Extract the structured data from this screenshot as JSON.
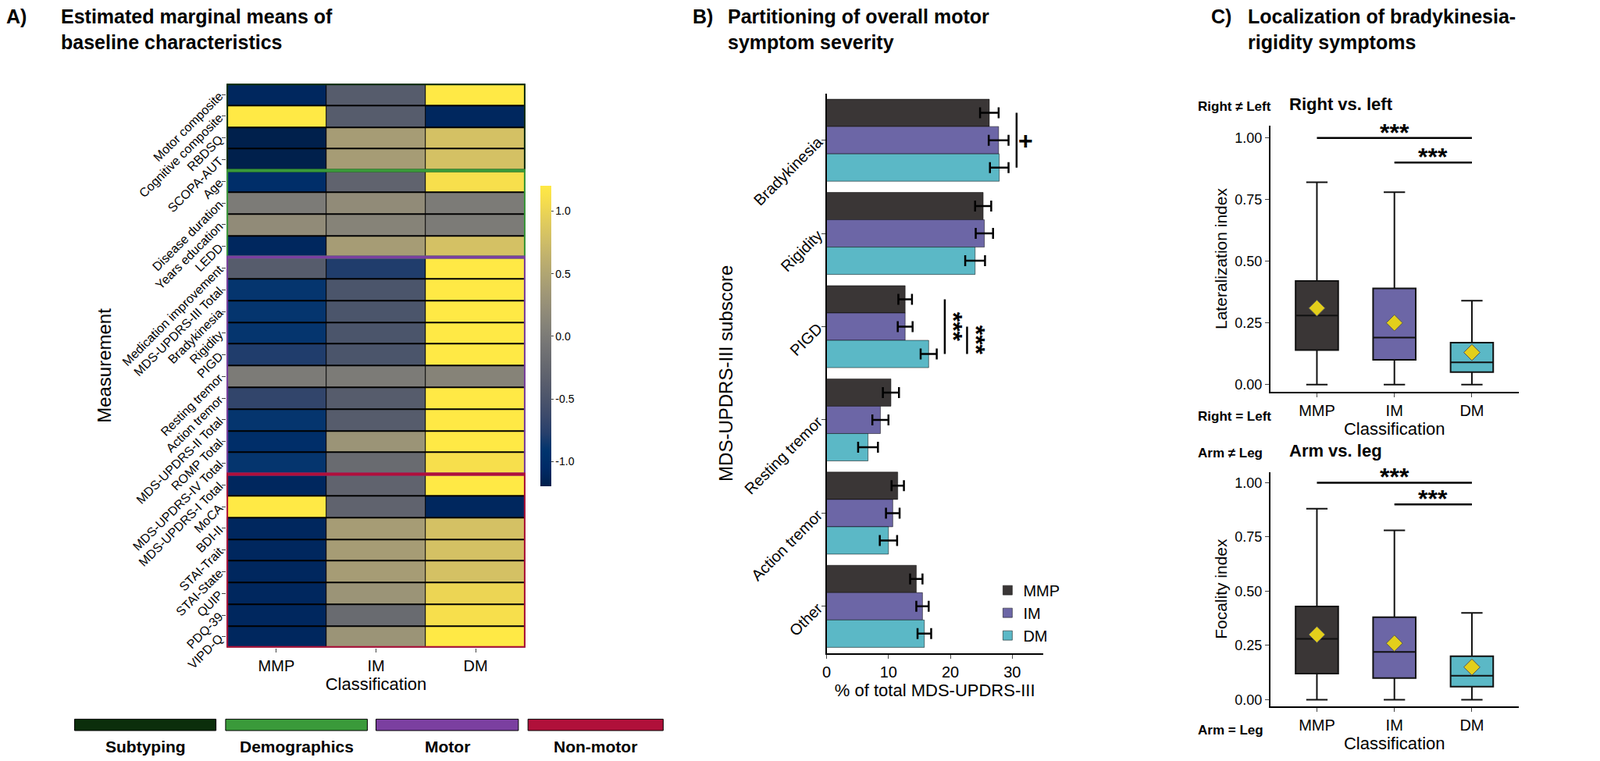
{
  "chart_data": [
    {
      "type": "heatmap",
      "panel": "A)",
      "title": "Estimated marginal means of\nbaseline characteristics",
      "x_label": "Classification",
      "y_label": "Measurement",
      "x": [
        "MMP",
        "IM",
        "DM"
      ],
      "categories": [
        "Motor composite",
        "Cognitive composite",
        "RBDSQ",
        "SCOPA-AUT",
        "Age",
        "Disease duration",
        "Years education",
        "LEDD",
        "Medication improvement",
        "MDS-UPDRS-III Total",
        "Bradykinesia",
        "Rigidity",
        "PIGD",
        "Resting tremor",
        "Action tremor",
        "MDS-UPDRS-II Total",
        "ROMP Total",
        "MDS-UPDRS-IV Total",
        "MDS-UPDRS-I Total",
        "MoCA",
        "BDI-II",
        "STAI-Trait",
        "STAI-State",
        "QUIP",
        "PDQ-39",
        "VIPD-Q"
      ],
      "cells": [
        [
          -1.1,
          -0.4,
          1.2
        ],
        [
          1.2,
          -0.4,
          -1.1
        ],
        [
          -1.2,
          0.4,
          0.8
        ],
        [
          -1.2,
          0.4,
          0.8
        ],
        [
          -1.0,
          -0.3,
          1.1
        ],
        [
          0.0,
          0.2,
          0.0
        ],
        [
          0.2,
          0.1,
          0.0
        ],
        [
          -1.1,
          0.4,
          0.8
        ],
        [
          -0.4,
          -0.8,
          1.2
        ],
        [
          -0.9,
          -0.5,
          1.2
        ],
        [
          -0.9,
          -0.5,
          1.2
        ],
        [
          -0.9,
          -0.5,
          1.2
        ],
        [
          -0.8,
          -0.5,
          1.2
        ],
        [
          0.0,
          0.0,
          0.1
        ],
        [
          -0.7,
          -0.4,
          1.2
        ],
        [
          -0.9,
          -0.4,
          1.2
        ],
        [
          -1.0,
          0.3,
          1.2
        ],
        [
          -0.9,
          -0.2,
          1.1
        ],
        [
          -1.1,
          -0.3,
          1.2
        ],
        [
          1.2,
          -0.3,
          -1.1
        ],
        [
          -1.1,
          0.4,
          0.8
        ],
        [
          -1.1,
          0.4,
          0.8
        ],
        [
          -1.1,
          0.4,
          0.8
        ],
        [
          -1.1,
          0.3,
          1.0
        ],
        [
          -1.1,
          -0.2,
          1.1
        ],
        [
          -1.1,
          0.3,
          1.2
        ]
      ],
      "colorbar": {
        "range": [
          -1.2,
          1.2
        ],
        "ticks": [
          {
            "value": -1,
            "label": "-1.0"
          },
          -0.5,
          {
            "value": 0,
            "label": "0.0"
          },
          0.5,
          {
            "value": 1,
            "label": "1.0"
          }
        ]
      },
      "groups": [
        {
          "name": "Subtyping",
          "color": "#0b2e0b",
          "count": 4
        },
        {
          "name": "Demographics",
          "color": "#3a9a3a",
          "count": 4
        },
        {
          "name": "Motor",
          "color": "#7b3fa0",
          "count": 10
        },
        {
          "name": "Non-motor",
          "color": "#b0103a",
          "count": 8
        }
      ]
    },
    {
      "type": "bar",
      "orientation": "horizontal",
      "panel": "B)",
      "title": "Partitioning of overall motor\nsymptom severity",
      "x_label": "% of total MDS-UPDRS-III",
      "y_label": "MDS-UPDRS-III subscore",
      "categories": [
        "Bradykinesia",
        "Rigidity",
        "PIGD",
        "Resting tremor",
        "Action tremor",
        "Other"
      ],
      "series": [
        {
          "name": "MMP",
          "color": "#3a3636",
          "values": [
            26.3,
            25.3,
            12.7,
            10.4,
            11.5,
            14.5
          ],
          "errors": [
            1.5,
            1.3,
            1.1,
            1.3,
            1.0,
            1.0
          ]
        },
        {
          "name": "IM",
          "color": "#6c66a6",
          "values": [
            27.8,
            25.5,
            12.7,
            8.7,
            10.7,
            15.5
          ],
          "errors": [
            1.6,
            1.4,
            1.2,
            1.3,
            1.1,
            1.0
          ]
        },
        {
          "name": "DM",
          "color": "#5bb8c6",
          "values": [
            27.9,
            24.0,
            16.5,
            6.7,
            10.0,
            15.8
          ],
          "errors": [
            1.5,
            1.6,
            1.3,
            1.6,
            1.4,
            1.1
          ]
        }
      ],
      "xlim": [
        0,
        35
      ],
      "xticks": [
        0,
        10,
        20,
        30
      ],
      "legend": "bottom right",
      "annotations": [
        {
          "text": "+",
          "category": "Bradykinesia",
          "from": "MMP",
          "to": "DM"
        },
        {
          "text": "***",
          "category": "PIGD",
          "from": "MMP",
          "to": "DM"
        },
        {
          "text": "***",
          "category": "PIGD",
          "from": "IM",
          "to": "DM"
        }
      ]
    },
    {
      "type": "box",
      "panel": "C)",
      "title": "Localization of bradykinesia-\nrigidity symptoms",
      "subtitle": "Right vs. left",
      "upper_label": "Right ≠ Left",
      "lower_label": "Right = Left",
      "x_label": "Classification",
      "y_label": "Lateralization index",
      "categories": [
        "MMP",
        "IM",
        "DM"
      ],
      "colors": [
        "#3a3636",
        "#6c66a6",
        "#5bb8c6"
      ],
      "stats": {
        "lower": [
          0,
          0,
          0
        ],
        "q1": [
          0.14,
          0.1,
          0.05
        ],
        "median": [
          0.28,
          0.19,
          0.09
        ],
        "q3": [
          0.42,
          0.39,
          0.17
        ],
        "upper": [
          0.82,
          0.78,
          0.34
        ],
        "mean": [
          0.31,
          0.25,
          0.13
        ]
      },
      "ylim": [
        -0.03,
        1.05
      ],
      "yticks": [
        {
          "value": 0,
          "label": "0.00"
        },
        0.25,
        {
          "value": 0.5,
          "label": "0.50"
        },
        0.75,
        {
          "value": 1,
          "label": "1.00"
        }
      ],
      "annotations": [
        {
          "text": "***",
          "from": "MMP",
          "to": "DM",
          "y": 1.0
        },
        {
          "text": "***",
          "from": "IM",
          "to": "DM",
          "y": 0.9
        }
      ]
    },
    {
      "type": "box",
      "subtitle": "Arm vs. leg",
      "upper_label": "Arm ≠ Leg",
      "lower_label": "Arm = Leg",
      "x_label": "Classification",
      "y_label": "Focality index",
      "categories": [
        "MMP",
        "IM",
        "DM"
      ],
      "colors": [
        "#3a3636",
        "#6c66a6",
        "#5bb8c6"
      ],
      "stats": {
        "lower": [
          0,
          0,
          0
        ],
        "q1": [
          0.12,
          0.1,
          0.06
        ],
        "median": [
          0.28,
          0.22,
          0.11
        ],
        "q3": [
          0.43,
          0.38,
          0.2
        ],
        "upper": [
          0.88,
          0.78,
          0.4
        ],
        "mean": [
          0.3,
          0.26,
          0.15
        ]
      },
      "ylim": [
        -0.03,
        1.05
      ],
      "yticks": [
        {
          "value": 0,
          "label": "0.00"
        },
        0.25,
        {
          "value": 0.5,
          "label": "0.50"
        },
        0.75,
        {
          "value": 1,
          "label": "1.00"
        }
      ],
      "annotations": [
        {
          "text": "***",
          "from": "MMP",
          "to": "DM",
          "y": 1.0
        },
        {
          "text": "***",
          "from": "IM",
          "to": "DM",
          "y": 0.9
        }
      ]
    }
  ]
}
